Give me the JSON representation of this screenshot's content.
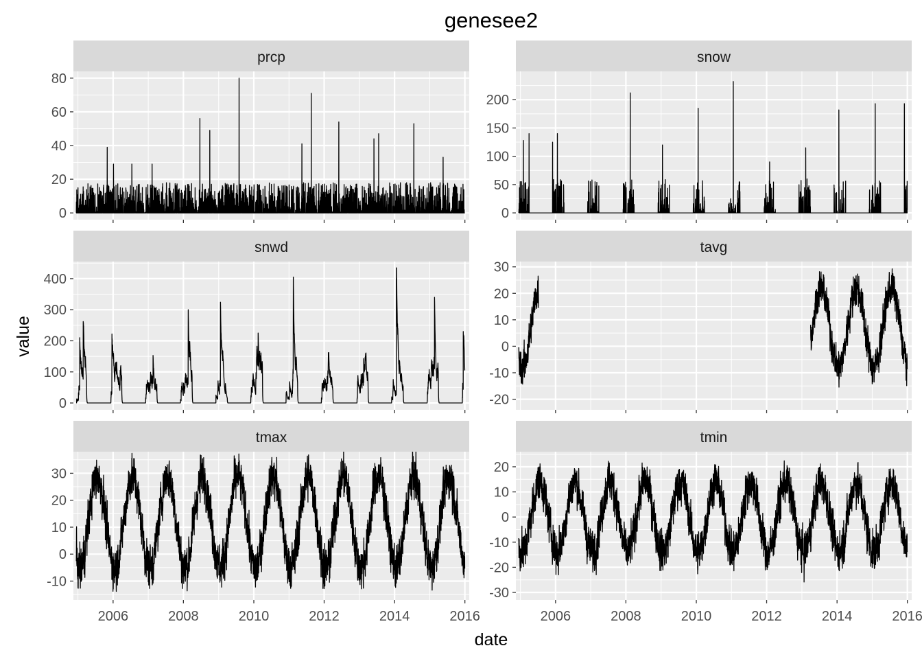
{
  "chart_data": {
    "type": "line",
    "title": "genesee2",
    "xlabel": "date",
    "ylabel": "value",
    "layout": "facet grid, 3 rows x 2 columns, free y scales",
    "grid": true,
    "line_color": "#000000",
    "panel_background": "#EBEBEB",
    "strip_background": "#D9D9D9",
    "x_range": [
      "2004-11-15",
      "2016-02-15"
    ],
    "x_ticks": [
      "2006",
      "2008",
      "2010",
      "2012",
      "2014",
      "2016"
    ],
    "panels": [
      {
        "name": "prcp",
        "ylim": [
          -4,
          84
        ],
        "y_ticks": [
          0,
          20,
          40,
          60,
          80
        ],
        "x_start": "2004-12-15",
        "x_end": "2015-12-31",
        "description": "daily precipitation spikes, mostly under 20, max ~80 in mid 2009",
        "peaks": [
          {
            "x": "2005-11-01",
            "y": 39
          },
          {
            "x": "2006-01-05",
            "y": 29
          },
          {
            "x": "2006-07-15",
            "y": 29
          },
          {
            "x": "2007-02-10",
            "y": 29
          },
          {
            "x": "2008-06-20",
            "y": 56
          },
          {
            "x": "2008-10-01",
            "y": 49
          },
          {
            "x": "2009-08-01",
            "y": 80
          },
          {
            "x": "2011-05-15",
            "y": 41
          },
          {
            "x": "2011-08-20",
            "y": 71
          },
          {
            "x": "2012-06-01",
            "y": 54
          },
          {
            "x": "2013-06-01",
            "y": 44
          },
          {
            "x": "2013-07-20",
            "y": 47
          },
          {
            "x": "2014-07-20",
            "y": 53
          },
          {
            "x": "2015-05-20",
            "y": 33
          }
        ]
      },
      {
        "name": "snow",
        "ylim": [
          -12,
          250
        ],
        "y_ticks": [
          0,
          50,
          100,
          150,
          200
        ],
        "x_start": "2004-12-15",
        "x_end": "2015-12-31",
        "description": "winter snowfall bursts, zero in summer, max ~230 in early 2011",
        "peaks": [
          {
            "x": "2005-02-01",
            "y": 128
          },
          {
            "x": "2005-04-01",
            "y": 140
          },
          {
            "x": "2005-12-01",
            "y": 125
          },
          {
            "x": "2006-01-20",
            "y": 140
          },
          {
            "x": "2007-02-15",
            "y": 55
          },
          {
            "x": "2008-02-15",
            "y": 212
          },
          {
            "x": "2009-01-15",
            "y": 120
          },
          {
            "x": "2010-01-20",
            "y": 185
          },
          {
            "x": "2011-01-20",
            "y": 232
          },
          {
            "x": "2012-02-01",
            "y": 90
          },
          {
            "x": "2013-02-10",
            "y": 115
          },
          {
            "x": "2014-01-20",
            "y": 182
          },
          {
            "x": "2015-02-01",
            "y": 193
          },
          {
            "x": "2015-12-01",
            "y": 193
          }
        ]
      },
      {
        "name": "snwd",
        "ylim": [
          -22,
          455
        ],
        "y_ticks": [
          0,
          100,
          200,
          300,
          400
        ],
        "x_start": "2004-12-15",
        "x_end": "2015-12-31",
        "description": "winter snow depth, max ~435 in early 2014",
        "peaks": [
          {
            "x": "2005-01-20",
            "y": 210
          },
          {
            "x": "2005-02-25",
            "y": 262
          },
          {
            "x": "2005-12-20",
            "y": 222
          },
          {
            "x": "2007-02-20",
            "y": 153
          },
          {
            "x": "2008-02-20",
            "y": 300
          },
          {
            "x": "2009-01-20",
            "y": 324
          },
          {
            "x": "2010-02-15",
            "y": 225
          },
          {
            "x": "2011-02-15",
            "y": 405
          },
          {
            "x": "2012-02-10",
            "y": 102
          },
          {
            "x": "2013-02-15",
            "y": 143
          },
          {
            "x": "2014-01-20",
            "y": 435
          },
          {
            "x": "2015-02-20",
            "y": 340
          },
          {
            "x": "2015-12-15",
            "y": 230
          }
        ]
      },
      {
        "name": "tavg",
        "ylim": [
          -24,
          32
        ],
        "y_ticks": [
          -20,
          -10,
          0,
          10,
          20,
          30
        ],
        "segments": [
          [
            "2004-12-15",
            "2005-07-10"
          ],
          [
            "2013-04-01",
            "2015-12-31"
          ]
        ],
        "description": "seasonal average temperature, present only 2005 and 2013-2015",
        "seasonal": {
          "mean": 7,
          "amplitude": 15,
          "noise": 5,
          "warmest": "07-20"
        }
      },
      {
        "name": "tmax",
        "ylim": [
          -17,
          38
        ],
        "y_ticks": [
          -10,
          0,
          10,
          20,
          30
        ],
        "x_start": "2004-12-15",
        "x_end": "2015-12-31",
        "description": "seasonal maximum temperature, range about -15 to 36",
        "seasonal": {
          "mean": 12,
          "amplitude": 17,
          "noise": 6,
          "warmest": "07-20"
        }
      },
      {
        "name": "tmin",
        "ylim": [
          -33,
          26
        ],
        "y_ticks": [
          -30,
          -20,
          -10,
          0,
          10,
          20
        ],
        "x_start": "2004-12-15",
        "x_end": "2015-12-31",
        "description": "seasonal minimum temperature, range about -30 to 24",
        "seasonal": {
          "mean": 0,
          "amplitude": 14,
          "noise": 6,
          "warmest": "07-20"
        }
      }
    ]
  }
}
